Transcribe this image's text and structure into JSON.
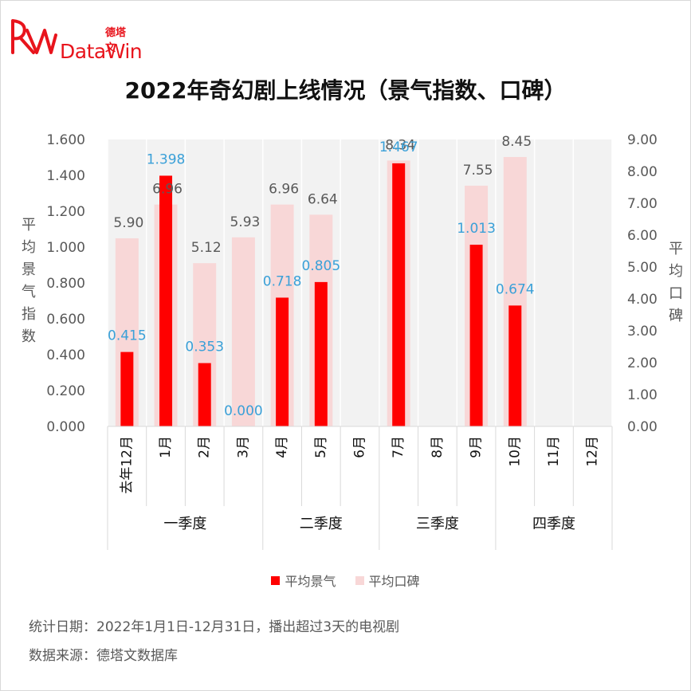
{
  "logo": {
    "cn": "德塔文",
    "en": "DataWin"
  },
  "title": "2022年奇幻剧上线情况（景气指数、口碑）",
  "legend": [
    {
      "label": "平均景气",
      "color": "#ff0000"
    },
    {
      "label": "平均口碑",
      "color": "#f8d7d7"
    }
  ],
  "notes": {
    "stats_date": "统计日期：2022年1月1日-12月31日，播出超过3天的电视剧",
    "source": "数据来源：德塔文数据库"
  },
  "chart_data": {
    "type": "bar",
    "categories": [
      "去年12月",
      "1月",
      "2月",
      "3月",
      "4月",
      "5月",
      "6月",
      "7月",
      "8月",
      "9月",
      "10月",
      "11月",
      "12月"
    ],
    "groups": [
      {
        "label": "一季度",
        "span": 4
      },
      {
        "label": "二季度",
        "span": 3
      },
      {
        "label": "三季度",
        "span": 3
      },
      {
        "label": "四季度",
        "span": 3
      }
    ],
    "series": [
      {
        "name": "平均景气",
        "axis": "left",
        "color": "#ff0000",
        "values": [
          0.415,
          1.398,
          0.353,
          0.0,
          0.718,
          0.805,
          null,
          1.467,
          null,
          1.013,
          0.674,
          null,
          null
        ],
        "labels": [
          "0.415",
          "1.398",
          "0.353",
          "0.000",
          "0.718",
          "0.805",
          "",
          "1.467",
          "",
          "1.013",
          "0.674",
          "",
          ""
        ]
      },
      {
        "name": "平均口碑",
        "axis": "right",
        "color": "#f8d7d7",
        "values": [
          5.9,
          6.96,
          5.12,
          5.93,
          6.96,
          6.64,
          null,
          8.34,
          null,
          7.55,
          8.45,
          null,
          null
        ],
        "labels": [
          "5.90",
          "6.96",
          "5.12",
          "5.93",
          "6.96",
          "6.64",
          "",
          "8.34",
          "",
          "7.55",
          "8.45",
          "",
          ""
        ]
      }
    ],
    "y_left": {
      "label": "平均景气指数",
      "range": [
        0,
        1.6
      ],
      "ticks": [
        "0.000",
        "0.200",
        "0.400",
        "0.600",
        "0.800",
        "1.000",
        "1.200",
        "1.400",
        "1.600"
      ]
    },
    "y_right": {
      "label": "平均口碑",
      "range": [
        0,
        9
      ],
      "ticks": [
        "0.00",
        "1.00",
        "2.00",
        "3.00",
        "4.00",
        "5.00",
        "6.00",
        "7.00",
        "8.00",
        "9.00"
      ]
    },
    "legend_position": "bottom",
    "value_label_colors": {
      "平均景气": "#3aa0d8",
      "平均口碑": "#595959"
    },
    "plot_background": "#f2f2f2"
  }
}
